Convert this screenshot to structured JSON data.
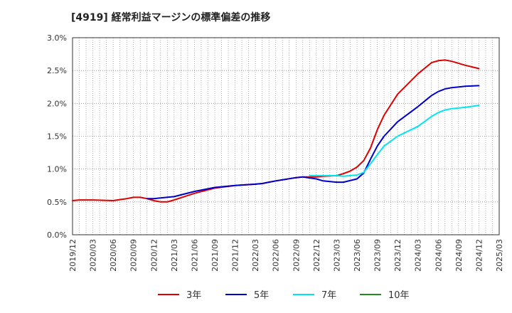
{
  "chart_data": {
    "type": "line",
    "title": "[4919]  経常利益マージンの標準偏差の推移",
    "xlabel": "",
    "ylabel": "",
    "ylim": [
      0,
      3.0
    ],
    "yticks": [
      "0.0%",
      "0.5%",
      "1.0%",
      "1.5%",
      "2.0%",
      "2.5%",
      "3.0%"
    ],
    "xticks": [
      "2019/12",
      "2020/03",
      "2020/06",
      "2020/09",
      "2020/12",
      "2021/03",
      "2021/06",
      "2021/09",
      "2021/12",
      "2022/03",
      "2022/06",
      "2022/09",
      "2022/12",
      "2023/03",
      "2023/06",
      "2023/09",
      "2023/12",
      "2024/03",
      "2024/06",
      "2024/09",
      "2024/12",
      "2025/03"
    ],
    "grid": true,
    "legend_position": "bottom",
    "series": [
      {
        "name": "3年",
        "color": "#dd0000",
        "points": [
          [
            "2019/12",
            0.52
          ],
          [
            "2020/01",
            0.53
          ],
          [
            "2020/03",
            0.53
          ],
          [
            "2020/06",
            0.52
          ],
          [
            "2020/08",
            0.55
          ],
          [
            "2020/09",
            0.57
          ],
          [
            "2020/10",
            0.57
          ],
          [
            "2020/11",
            0.55
          ],
          [
            "2020/12",
            0.52
          ],
          [
            "2021/01",
            0.5
          ],
          [
            "2021/02",
            0.5
          ],
          [
            "2021/03",
            0.53
          ],
          [
            "2021/06",
            0.63
          ],
          [
            "2021/09",
            0.71
          ],
          [
            "2021/12",
            0.75
          ],
          [
            "2022/03",
            0.77
          ],
          [
            "2022/04",
            0.78
          ],
          [
            "2022/06",
            0.82
          ],
          [
            "2022/09",
            0.87
          ],
          [
            "2022/10",
            0.88
          ],
          [
            "2022/12",
            0.88
          ],
          [
            "2023/01",
            0.89
          ],
          [
            "2023/03",
            0.9
          ],
          [
            "2023/04",
            0.93
          ],
          [
            "2023/05",
            0.97
          ],
          [
            "2023/06",
            1.03
          ],
          [
            "2023/07",
            1.13
          ],
          [
            "2023/08",
            1.32
          ],
          [
            "2023/09",
            1.6
          ],
          [
            "2023/10",
            1.82
          ],
          [
            "2023/12",
            2.14
          ],
          [
            "2024/03",
            2.45
          ],
          [
            "2024/05",
            2.62
          ],
          [
            "2024/06",
            2.65
          ],
          [
            "2024/07",
            2.66
          ],
          [
            "2024/08",
            2.64
          ],
          [
            "2024/10",
            2.58
          ],
          [
            "2024/12",
            2.53
          ]
        ]
      },
      {
        "name": "5年",
        "color": "#0000cc",
        "points": [
          [
            "2020/11",
            0.55
          ],
          [
            "2020/12",
            0.55
          ],
          [
            "2021/01",
            0.56
          ],
          [
            "2021/03",
            0.58
          ],
          [
            "2021/06",
            0.66
          ],
          [
            "2021/09",
            0.72
          ],
          [
            "2021/12",
            0.75
          ],
          [
            "2022/03",
            0.77
          ],
          [
            "2022/04",
            0.78
          ],
          [
            "2022/06",
            0.82
          ],
          [
            "2022/09",
            0.87
          ],
          [
            "2022/10",
            0.88
          ],
          [
            "2022/12",
            0.85
          ],
          [
            "2023/01",
            0.82
          ],
          [
            "2023/03",
            0.8
          ],
          [
            "2023/04",
            0.8
          ],
          [
            "2023/06",
            0.85
          ],
          [
            "2023/07",
            0.94
          ],
          [
            "2023/08",
            1.15
          ],
          [
            "2023/09",
            1.35
          ],
          [
            "2023/10",
            1.5
          ],
          [
            "2023/12",
            1.72
          ],
          [
            "2024/03",
            1.95
          ],
          [
            "2024/05",
            2.12
          ],
          [
            "2024/06",
            2.18
          ],
          [
            "2024/07",
            2.22
          ],
          [
            "2024/08",
            2.24
          ],
          [
            "2024/10",
            2.26
          ],
          [
            "2024/12",
            2.27
          ]
        ]
      },
      {
        "name": "7年",
        "color": "#00e5ee",
        "points": [
          [
            "2022/11",
            0.9
          ],
          [
            "2022/12",
            0.9
          ],
          [
            "2023/01",
            0.9
          ],
          [
            "2023/03",
            0.9
          ],
          [
            "2023/04",
            0.89
          ],
          [
            "2023/06",
            0.91
          ],
          [
            "2023/07",
            0.95
          ],
          [
            "2023/08",
            1.08
          ],
          [
            "2023/09",
            1.22
          ],
          [
            "2023/10",
            1.35
          ],
          [
            "2023/12",
            1.5
          ],
          [
            "2024/03",
            1.65
          ],
          [
            "2024/05",
            1.8
          ],
          [
            "2024/06",
            1.86
          ],
          [
            "2024/07",
            1.9
          ],
          [
            "2024/08",
            1.92
          ],
          [
            "2024/10",
            1.94
          ],
          [
            "2024/12",
            1.97
          ]
        ]
      },
      {
        "name": "10年",
        "color": "#228b22",
        "points": []
      }
    ]
  }
}
